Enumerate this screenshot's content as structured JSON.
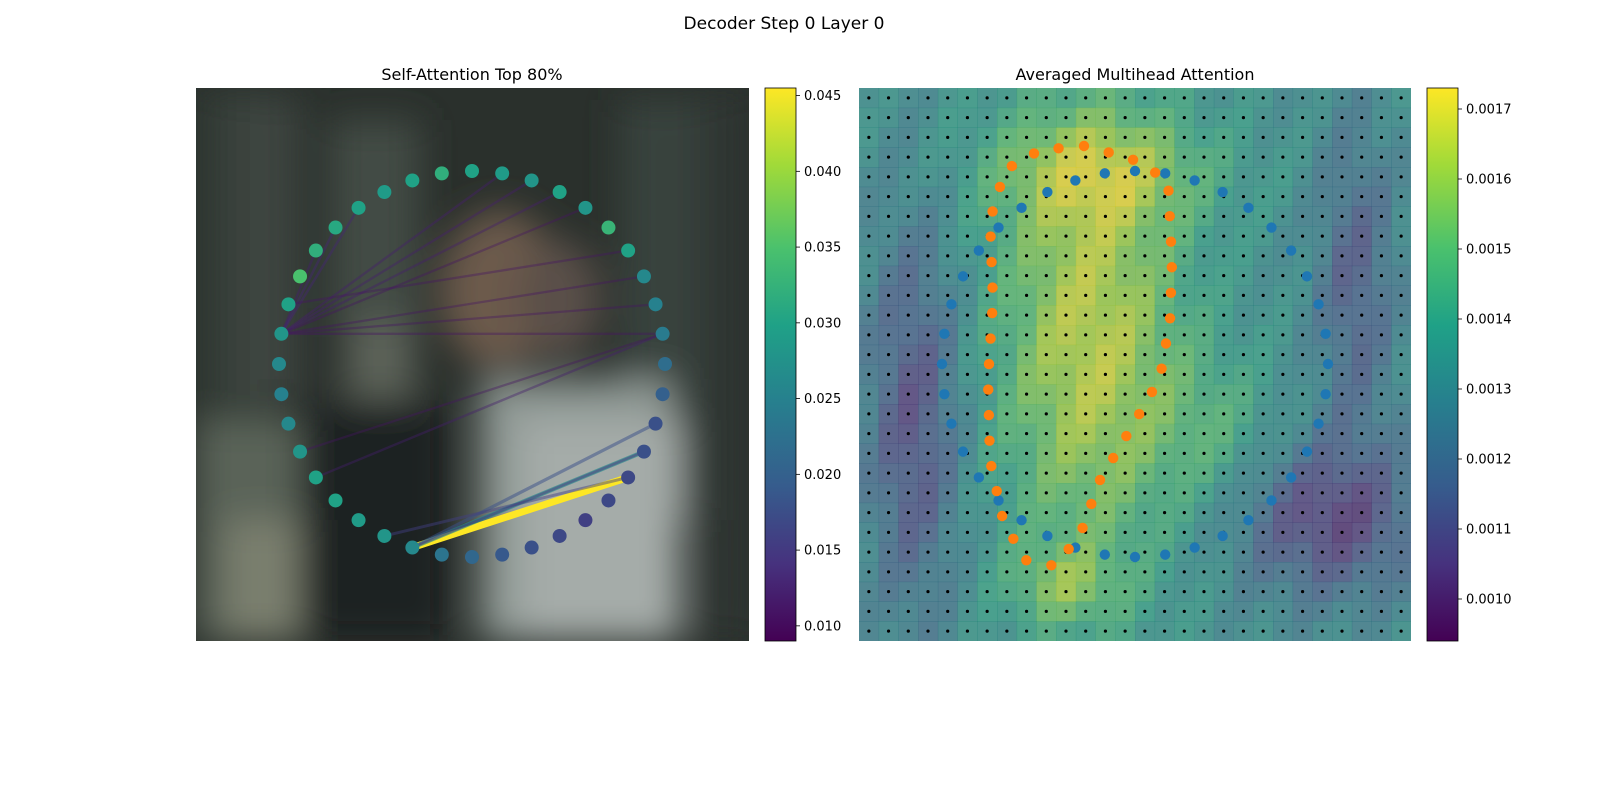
{
  "figure": {
    "suptitle": "Decoder Step 0 Layer 0"
  },
  "chart_data": [
    {
      "type": "scatter",
      "title": "Self-Attention Top 80%",
      "description_of_background": "blurred photo",
      "colormap": "viridis",
      "colorbar": {
        "min": 0.009,
        "max": 0.0455,
        "ticks": [
          "0.010",
          "0.015",
          "0.020",
          "0.025",
          "0.030",
          "0.035",
          "0.040",
          "0.045"
        ],
        "tick_values": [
          0.01,
          0.015,
          0.02,
          0.025,
          0.03,
          0.035,
          0.04,
          0.045
        ]
      },
      "contour_points": {
        "count": 40,
        "values": [
          0.03,
          0.029,
          0.028,
          0.03,
          0.028,
          0.033,
          0.03,
          0.026,
          0.025,
          0.024,
          0.022,
          0.02,
          0.018,
          0.018,
          0.017,
          0.017,
          0.016,
          0.017,
          0.018,
          0.019,
          0.021,
          0.023,
          0.026,
          0.028,
          0.029,
          0.03,
          0.03,
          0.028,
          0.026,
          0.025,
          0.026,
          0.028,
          0.03,
          0.035,
          0.032,
          0.031,
          0.03,
          0.029,
          0.03,
          0.032
        ]
      },
      "attention_edges": [
        {
          "from": 22,
          "to": 14,
          "weight": 0.046
        },
        {
          "from": 22,
          "to": 13,
          "weight": 0.026
        },
        {
          "from": 22,
          "to": 12,
          "weight": 0.018
        },
        {
          "from": 23,
          "to": 14,
          "weight": 0.016
        },
        {
          "from": 13,
          "to": 22,
          "weight": 0.014
        },
        {
          "from": 31,
          "to": 36,
          "weight": 0.013
        },
        {
          "from": 31,
          "to": 35,
          "weight": 0.013
        },
        {
          "from": 31,
          "to": 34,
          "weight": 0.012
        },
        {
          "from": 31,
          "to": 3,
          "weight": 0.012
        },
        {
          "from": 31,
          "to": 2,
          "weight": 0.012
        },
        {
          "from": 31,
          "to": 1,
          "weight": 0.012
        },
        {
          "from": 31,
          "to": 4,
          "weight": 0.011
        },
        {
          "from": 7,
          "to": 31,
          "weight": 0.011
        },
        {
          "from": 6,
          "to": 32,
          "weight": 0.011
        },
        {
          "from": 8,
          "to": 31,
          "weight": 0.011
        },
        {
          "from": 9,
          "to": 31,
          "weight": 0.011
        },
        {
          "from": 26,
          "to": 9,
          "weight": 0.012
        },
        {
          "from": 27,
          "to": 9,
          "weight": 0.011
        }
      ]
    },
    {
      "type": "heatmap",
      "title": "Averaged Multihead Attention",
      "colormap": "viridis",
      "grid_size": [
        28,
        28
      ],
      "colorbar": {
        "min": 0.00094,
        "max": 0.00173,
        "ticks": [
          "0.0010",
          "0.0011",
          "0.0012",
          "0.0013",
          "0.0014",
          "0.0015",
          "0.0016",
          "0.0017"
        ],
        "tick_values": [
          0.001,
          0.0011,
          0.0012,
          0.0013,
          0.0014,
          0.0015,
          0.0016,
          0.0017
        ]
      },
      "series": [
        {
          "name": "",
          "color": "#1f77b4",
          "marker": "large dots"
        },
        {
          "name": "",
          "color": "#ff7f0e",
          "marker": "large dots"
        },
        {
          "name": "",
          "color": "#000000",
          "marker": "small dots"
        }
      ]
    }
  ]
}
